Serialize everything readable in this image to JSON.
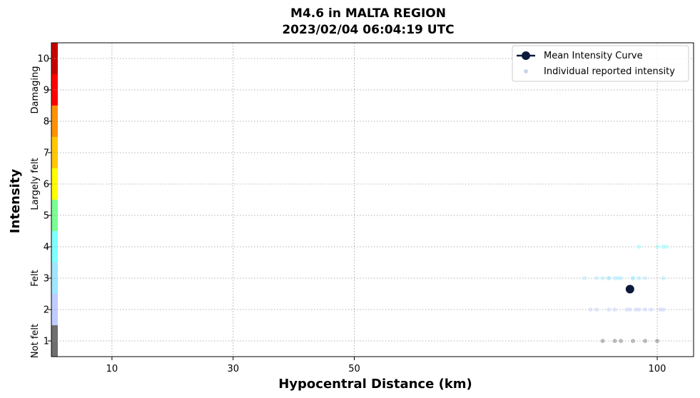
{
  "chart_data": {
    "type": "scatter",
    "title": "M4.6 in MALTA REGION",
    "subtitle": "2023/02/04 06:04:19 UTC",
    "xlabel": "Hypocentral Distance (km)",
    "ylabel": "Intensity",
    "xlim": [
      0,
      106
    ],
    "ylim": [
      0.5,
      10.5
    ],
    "x_ticks": [
      10,
      30,
      50,
      100
    ],
    "y_ticks": [
      1,
      2,
      3,
      4,
      5,
      6,
      7,
      8,
      9,
      10
    ],
    "grid": true,
    "legend_position": "top-right",
    "legend": [
      "Mean Intensity Curve",
      "Individual reported intensity"
    ],
    "intensity_bands": [
      {
        "label": "Not felt",
        "from": 0.5,
        "to": 1.5
      },
      {
        "label": "Felt",
        "from": 1.5,
        "to": 4.5
      },
      {
        "label": "Largely felt",
        "from": 4.5,
        "to": 7.5
      },
      {
        "label": "Damaging",
        "from": 7.5,
        "to": 10.5
      }
    ],
    "intensity_colors": {
      "1": "#6e6e6e",
      "2": "#bfccff",
      "3": "#a0e6ff",
      "4": "#80ffff",
      "5": "#7aff93",
      "6": "#ffff00",
      "7": "#ffc800",
      "8": "#ff9100",
      "9": "#ff0000",
      "10": "#c80000"
    },
    "series": [
      {
        "name": "Mean Intensity Curve",
        "x": [
          95.5
        ],
        "y": [
          2.65
        ],
        "color": "#0b1a3a"
      },
      {
        "name": "Individual reported intensity",
        "color": "#c9d6e8",
        "x": [
          91,
          93,
          94,
          96,
          98,
          100,
          89,
          90,
          92,
          93,
          95,
          95.5,
          96.5,
          97,
          98,
          99,
          101,
          100.5,
          88,
          90,
          92,
          93,
          94,
          96,
          97,
          98,
          101,
          91,
          92,
          93.5,
          96,
          97,
          100,
          101,
          101.5
        ],
        "y": [
          1,
          1,
          1,
          1,
          1,
          1,
          2,
          2,
          2,
          2,
          2,
          2,
          2,
          2,
          2,
          2,
          2,
          2,
          3,
          3,
          3,
          3,
          3,
          3,
          3,
          3,
          3,
          3,
          3,
          3,
          3,
          4,
          4,
          4,
          4
        ]
      }
    ]
  }
}
